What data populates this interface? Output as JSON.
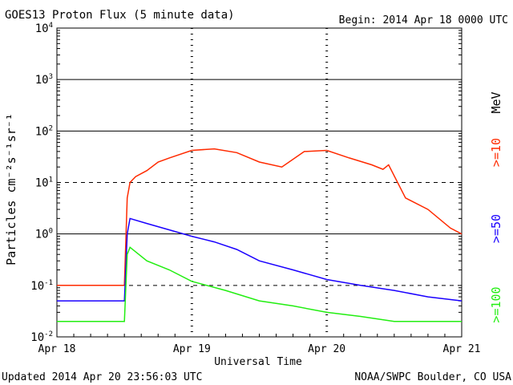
{
  "header": {
    "title": "GOES13 Proton Flux (5 minute data)",
    "begin": "Begin: 2014 Apr 18 0000 UTC"
  },
  "footer": {
    "updated": "Updated 2014 Apr 20 23:56:03 UTC",
    "source": "NOAA/SWPC Boulder, CO USA"
  },
  "colors": {
    "ge10": "#ff2a00",
    "ge50": "#1a00ff",
    "ge100": "#22ee11",
    "axis": "#000000"
  },
  "chart_data": {
    "type": "line",
    "title": "GOES13 Proton Flux (5 minute data)",
    "xlabel": "Universal Time",
    "ylabel": "Particles cm⁻²s⁻¹sr⁻¹",
    "y_scale": "log",
    "ylim": [
      0.01,
      10000
    ],
    "xlim": [
      "2014-04-18 00:00",
      "2014-04-21 00:00"
    ],
    "x_tick_labels": [
      "Apr 18",
      "Apr 19",
      "Apr 20",
      "Apr 21"
    ],
    "y_tick_labels": [
      {
        "base": "10",
        "exp": "-2",
        "value": 0.01
      },
      {
        "base": "10",
        "exp": "-1",
        "value": 0.1
      },
      {
        "base": "10",
        "exp": "0",
        "value": 1
      },
      {
        "base": "10",
        "exp": "1",
        "value": 10
      },
      {
        "base": "10",
        "exp": "2",
        "value": 100
      },
      {
        "base": "10",
        "exp": "3",
        "value": 1000
      },
      {
        "base": "10",
        "exp": "4",
        "value": 10000
      }
    ],
    "right_axis_unit": "MeV",
    "series": [
      {
        "name": ">=10",
        "color": "#ff2a00",
        "x": [
          "2014-04-18 00:00",
          "2014-04-18 06:00",
          "2014-04-18 12:00",
          "2014-04-18 12:30",
          "2014-04-18 13:00",
          "2014-04-18 14:00",
          "2014-04-18 16:00",
          "2014-04-18 18:00",
          "2014-04-18 20:00",
          "2014-04-19 00:00",
          "2014-04-19 04:00",
          "2014-04-19 08:00",
          "2014-04-19 12:00",
          "2014-04-19 16:00",
          "2014-04-19 20:00",
          "2014-04-20 00:00",
          "2014-04-20 04:00",
          "2014-04-20 08:00",
          "2014-04-20 10:00",
          "2014-04-20 11:00",
          "2014-04-20 14:00",
          "2014-04-20 18:00",
          "2014-04-20 22:00",
          "2014-04-21 00:00"
        ],
        "values": [
          0.1,
          0.1,
          0.1,
          5,
          10,
          13,
          17,
          25,
          30,
          42,
          45,
          38,
          25,
          20,
          40,
          42,
          30,
          22,
          18,
          22,
          5,
          3,
          1.3,
          1
        ]
      },
      {
        "name": ">=50",
        "color": "#1a00ff",
        "x": [
          "2014-04-18 00:00",
          "2014-04-18 06:00",
          "2014-04-18 12:00",
          "2014-04-18 12:30",
          "2014-04-18 13:00",
          "2014-04-18 16:00",
          "2014-04-18 20:00",
          "2014-04-19 00:00",
          "2014-04-19 04:00",
          "2014-04-19 08:00",
          "2014-04-19 12:00",
          "2014-04-19 18:00",
          "2014-04-20 00:00",
          "2014-04-20 06:00",
          "2014-04-20 12:00",
          "2014-04-20 18:00",
          "2014-04-21 00:00"
        ],
        "values": [
          0.05,
          0.05,
          0.05,
          1,
          2,
          1.6,
          1.2,
          0.9,
          0.7,
          0.5,
          0.3,
          0.2,
          0.13,
          0.1,
          0.08,
          0.06,
          0.05
        ]
      },
      {
        "name": ">=100",
        "color": "#22ee11",
        "x": [
          "2014-04-18 00:00",
          "2014-04-18 06:00",
          "2014-04-18 12:00",
          "2014-04-18 12:30",
          "2014-04-18 13:00",
          "2014-04-18 16:00",
          "2014-04-18 20:00",
          "2014-04-19 00:00",
          "2014-04-19 06:00",
          "2014-04-19 12:00",
          "2014-04-19 18:00",
          "2014-04-20 00:00",
          "2014-04-20 06:00",
          "2014-04-20 12:00",
          "2014-04-20 18:00",
          "2014-04-21 00:00"
        ],
        "values": [
          0.02,
          0.02,
          0.02,
          0.4,
          0.55,
          0.3,
          0.2,
          0.12,
          0.08,
          0.05,
          0.04,
          0.03,
          0.025,
          0.02,
          0.02,
          0.02
        ]
      }
    ],
    "grid": "horizontal lines at each decade (10^-1 dashed, 10^1 dashed); dotted verticals at day boundaries",
    "legend": "right side, rotated labels"
  }
}
